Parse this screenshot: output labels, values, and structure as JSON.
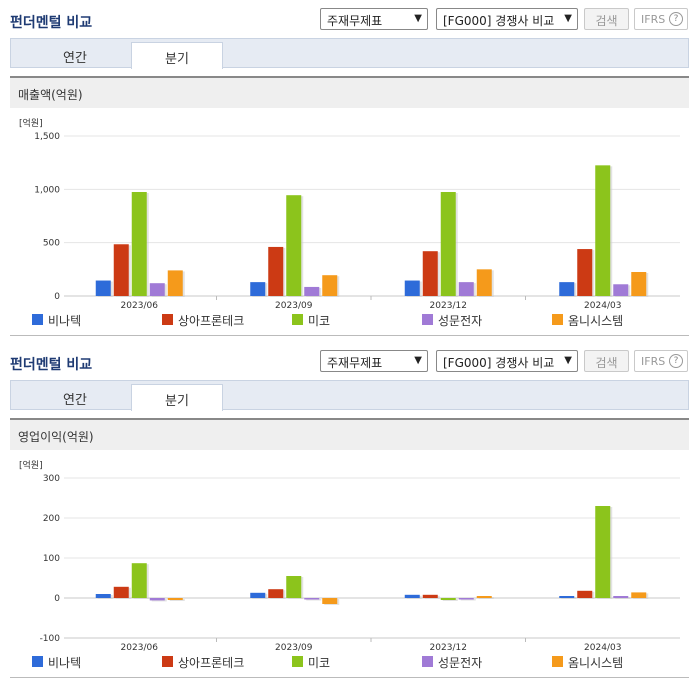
{
  "panels": [
    {
      "header": {
        "title": "펀더멘털 비교",
        "select_statement": "주재무제표",
        "select_compare": "[FG000] 경쟁사 비교",
        "search_label": "검색",
        "ifrs_label": "IFRS",
        "help_label": "?"
      },
      "tabs": [
        {
          "label": "연간",
          "active": false
        },
        {
          "label": "분기",
          "active": true
        }
      ],
      "chart_title": "매출액(억원)"
    },
    {
      "header": {
        "title": "펀더멘털 비교",
        "select_statement": "주재무제표",
        "select_compare": "[FG000] 경쟁사 비교",
        "search_label": "검색",
        "ifrs_label": "IFRS",
        "help_label": "?"
      },
      "tabs": [
        {
          "label": "연간",
          "active": false
        },
        {
          "label": "분기",
          "active": true
        }
      ],
      "chart_title": "영업이익(억원)"
    }
  ],
  "chart_data": [
    {
      "type": "bar",
      "title": "매출액(억원)",
      "ylabel": "[억원]",
      "ylim": [
        0,
        1500
      ],
      "yticks": [
        0,
        500,
        1000,
        1500
      ],
      "ytick_labels": [
        "0",
        "500",
        "1,000",
        "1,500"
      ],
      "grid": true,
      "legend_position": "bottom",
      "categories": [
        "2023/06",
        "2023/09",
        "2023/12",
        "2024/03"
      ],
      "series": [
        {
          "name": "비나텍",
          "color": "#2e6bd9",
          "values": [
            145,
            130,
            145,
            130
          ]
        },
        {
          "name": "상아프론테크",
          "color": "#cc3a14",
          "values": [
            485,
            460,
            420,
            440
          ]
        },
        {
          "name": "미코",
          "color": "#8cc41c",
          "values": [
            975,
            945,
            975,
            1225
          ]
        },
        {
          "name": "성문전자",
          "color": "#a07ad6",
          "values": [
            120,
            85,
            130,
            110
          ]
        },
        {
          "name": "옴니시스템",
          "color": "#f59a1b",
          "values": [
            240,
            195,
            250,
            225
          ]
        }
      ]
    },
    {
      "type": "bar",
      "title": "영업이익(억원)",
      "ylabel": "[억원]",
      "ylim": [
        -100,
        300
      ],
      "yticks": [
        -100,
        0,
        100,
        200,
        300
      ],
      "ytick_labels": [
        "-100",
        "0",
        "100",
        "200",
        "300"
      ],
      "grid": true,
      "legend_position": "bottom",
      "categories": [
        "2023/06",
        "2023/09",
        "2023/12",
        "2024/03"
      ],
      "series": [
        {
          "name": "비나텍",
          "color": "#2e6bd9",
          "values": [
            10,
            13,
            8,
            5
          ]
        },
        {
          "name": "상아프론테크",
          "color": "#cc3a14",
          "values": [
            28,
            22,
            8,
            18
          ]
        },
        {
          "name": "미코",
          "color": "#8cc41c",
          "values": [
            87,
            55,
            -5,
            230
          ]
        },
        {
          "name": "성문전자",
          "color": "#a07ad6",
          "values": [
            -6,
            0,
            0,
            5
          ]
        },
        {
          "name": "옴니시스템",
          "color": "#f59a1b",
          "values": [
            -5,
            -15,
            5,
            14
          ]
        }
      ]
    }
  ]
}
